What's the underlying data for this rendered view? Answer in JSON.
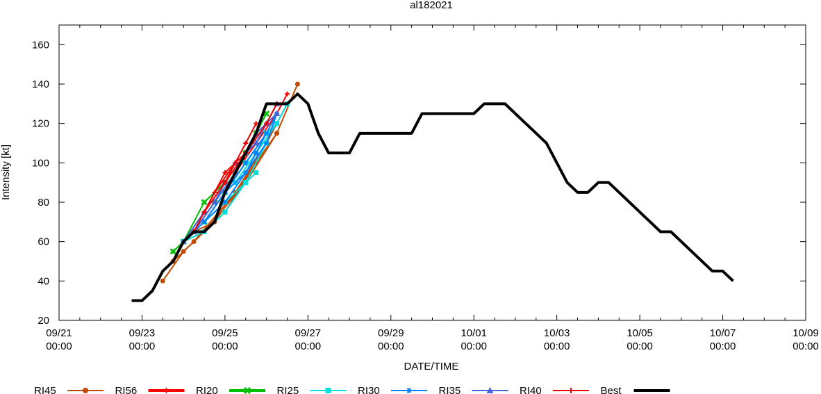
{
  "chart_data": {
    "type": "line",
    "title": "al182021",
    "xlabel": "DATE/TIME",
    "ylabel": "Intensity [kt]",
    "x_unit": "hours since 09/21 00:00",
    "xlim": [
      0,
      432
    ],
    "ylim": [
      20,
      170
    ],
    "x_ticks": [
      {
        "t": 0,
        "date": "09/21",
        "time": "00:00"
      },
      {
        "t": 48,
        "date": "09/23",
        "time": "00:00"
      },
      {
        "t": 96,
        "date": "09/25",
        "time": "00:00"
      },
      {
        "t": 144,
        "date": "09/27",
        "time": "00:00"
      },
      {
        "t": 192,
        "date": "09/29",
        "time": "00:00"
      },
      {
        "t": 240,
        "date": "10/01",
        "time": "00:00"
      },
      {
        "t": 288,
        "date": "10/03",
        "time": "00:00"
      },
      {
        "t": 336,
        "date": "10/05",
        "time": "00:00"
      },
      {
        "t": 384,
        "date": "10/07",
        "time": "00:00"
      },
      {
        "t": 432,
        "date": "10/09",
        "time": "00:00"
      }
    ],
    "y_ticks": [
      20,
      40,
      60,
      80,
      100,
      120,
      140,
      160
    ],
    "legend": [
      {
        "name": "RI45",
        "color": "#c04a00",
        "marker": "circle"
      },
      {
        "name": "RI56",
        "color": "#ff0000",
        "marker": "plus"
      },
      {
        "name": "RI20",
        "color": "#00c000",
        "marker": "x"
      },
      {
        "name": "RI25",
        "color": "#00e0e0",
        "marker": "square"
      },
      {
        "name": "RI30",
        "color": "#0080ff",
        "marker": "star"
      },
      {
        "name": "RI35",
        "color": "#4466dd",
        "marker": "triangle"
      },
      {
        "name": "RI40",
        "color": "#ee0000",
        "marker": "plus"
      },
      {
        "name": "Best",
        "color": "#000000",
        "marker": "none"
      }
    ],
    "best_track": {
      "name": "Best",
      "t": [
        42,
        48,
        54,
        60,
        66,
        72,
        78,
        84,
        90,
        96,
        102,
        108,
        114,
        120,
        126,
        132,
        138,
        144,
        150,
        156,
        162,
        168,
        174,
        180,
        186,
        192,
        198,
        204,
        210,
        216,
        222,
        228,
        234,
        240,
        246,
        252,
        258,
        264,
        270,
        276,
        282,
        288,
        294,
        300,
        306,
        312,
        318,
        324,
        330,
        336,
        342,
        348,
        354,
        360,
        366,
        372,
        378,
        384,
        390
      ],
      "v": [
        30,
        30,
        35,
        45,
        50,
        60,
        65,
        65,
        70,
        85,
        95,
        105,
        115,
        130,
        130,
        130,
        135,
        130,
        115,
        105,
        105,
        105,
        115,
        115,
        115,
        115,
        115,
        115,
        125,
        125,
        125,
        125,
        125,
        125,
        130,
        130,
        130,
        125,
        120,
        115,
        110,
        100,
        90,
        85,
        85,
        90,
        90,
        85,
        80,
        75,
        70,
        65,
        65,
        60,
        55,
        50,
        45,
        45,
        40
      ]
    },
    "forecasts": [
      {
        "name": "RI45",
        "t": [
          60,
          72,
          96,
          114,
          126,
          138
        ],
        "v": [
          40,
          55,
          75,
          100,
          115,
          140
        ]
      },
      {
        "name": "RI45",
        "t": [
          66,
          78,
          102,
          120,
          132
        ],
        "v": [
          50,
          60,
          85,
          110,
          130
        ]
      },
      {
        "name": "RI45",
        "t": [
          72,
          84,
          108,
          126
        ],
        "v": [
          60,
          65,
          90,
          115
        ]
      },
      {
        "name": "RI45",
        "t": [
          78,
          90,
          114,
          126
        ],
        "v": [
          65,
          70,
          100,
          120
        ]
      },
      {
        "name": "RI56",
        "t": [
          72,
          84,
          96,
          102
        ],
        "v": [
          60,
          75,
          95,
          100
        ]
      },
      {
        "name": "RI56",
        "t": [
          78,
          90,
          102,
          108
        ],
        "v": [
          65,
          80,
          100,
          105
        ]
      },
      {
        "name": "RI56",
        "t": [
          84,
          96,
          108,
          114
        ],
        "v": [
          70,
          85,
          105,
          110
        ]
      },
      {
        "name": "RI56",
        "t": [
          102,
          114,
          126,
          132
        ],
        "v": [
          95,
          110,
          125,
          135
        ]
      },
      {
        "name": "RI20",
        "t": [
          66,
          78,
          90,
          102,
          114
        ],
        "v": [
          55,
          65,
          80,
          95,
          115
        ]
      },
      {
        "name": "RI20",
        "t": [
          72,
          84,
          96,
          108,
          120
        ],
        "v": [
          60,
          80,
          90,
          105,
          125
        ]
      },
      {
        "name": "RI20",
        "t": [
          84,
          96,
          108,
          120
        ],
        "v": [
          70,
          85,
          100,
          115
        ]
      },
      {
        "name": "RI25",
        "t": [
          72,
          84,
          96,
          108,
          114
        ],
        "v": [
          60,
          65,
          75,
          90,
          95
        ]
      },
      {
        "name": "RI25",
        "t": [
          84,
          96,
          108,
          120
        ],
        "v": [
          70,
          80,
          90,
          110
        ]
      },
      {
        "name": "RI25",
        "t": [
          96,
          108,
          120,
          126
        ],
        "v": [
          85,
          100,
          115,
          120
        ]
      },
      {
        "name": "RI25",
        "t": [
          102,
          114,
          126,
          132
        ],
        "v": [
          90,
          105,
          120,
          130
        ]
      },
      {
        "name": "RI30",
        "t": [
          72,
          84,
          96,
          108,
          120
        ],
        "v": [
          60,
          70,
          85,
          100,
          115
        ]
      },
      {
        "name": "RI30",
        "t": [
          84,
          96,
          108,
          120,
          126
        ],
        "v": [
          70,
          80,
          95,
          110,
          125
        ]
      },
      {
        "name": "RI30",
        "t": [
          96,
          108,
          114,
          126
        ],
        "v": [
          85,
          95,
          105,
          125
        ]
      },
      {
        "name": "RI35",
        "t": [
          72,
          84,
          96,
          108,
          120
        ],
        "v": [
          60,
          75,
          90,
          105,
          120
        ]
      },
      {
        "name": "RI35",
        "t": [
          78,
          90,
          102,
          114,
          126
        ],
        "v": [
          65,
          80,
          100,
          110,
          130
        ]
      },
      {
        "name": "RI35",
        "t": [
          90,
          102,
          114,
          126
        ],
        "v": [
          80,
          95,
          115,
          125
        ]
      },
      {
        "name": "RI40",
        "t": [
          78,
          90,
          102,
          108
        ],
        "v": [
          65,
          85,
          100,
          105
        ]
      },
      {
        "name": "RI40",
        "t": [
          84,
          96,
          108,
          114
        ],
        "v": [
          75,
          90,
          110,
          120
        ]
      },
      {
        "name": "RI40",
        "t": [
          96,
          108,
          120,
          126
        ],
        "v": [
          90,
          105,
          120,
          130
        ]
      }
    ]
  }
}
